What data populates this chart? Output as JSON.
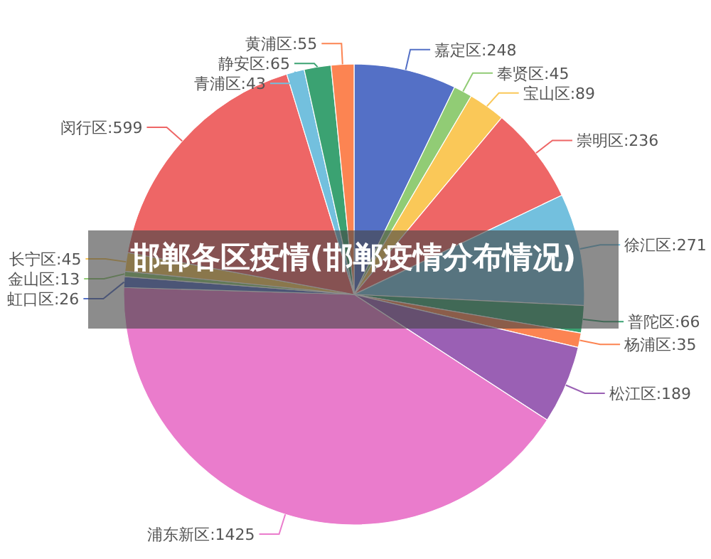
{
  "chart_data": {
    "type": "pie",
    "title": "邯郸各区疫情(邯郸疫情分布情况)",
    "categories": [
      "嘉定区",
      "奉贤区",
      "宝山区",
      "崇明区",
      "徐汇区",
      "普陀区",
      "杨浦区",
      "松江区",
      "浦东新区",
      "虹口区",
      "金山区",
      "长宁区",
      "闵行区",
      "青浦区",
      "静安区",
      "黄浦区"
    ],
    "values": [
      248,
      45,
      89,
      236,
      271,
      66,
      35,
      189,
      1425,
      26,
      13,
      45,
      599,
      43,
      65,
      55
    ],
    "colors": [
      "#5470c6",
      "#91cc75",
      "#fac858",
      "#ee6666",
      "#73c0de",
      "#3ba272",
      "#fc8452",
      "#9a60b4",
      "#ea7ccc",
      "#5470c6",
      "#91cc75",
      "#fac858",
      "#ee6666",
      "#73c0de",
      "#3ba272",
      "#fc8452"
    ],
    "value_labels": [
      ":248",
      ":45",
      ":89",
      ":236",
      ":271",
      ":66",
      ":35",
      ":189",
      ":1425",
      ":26",
      ":13",
      ":45",
      ":599",
      ":43",
      ":65",
      ":55"
    ]
  }
}
